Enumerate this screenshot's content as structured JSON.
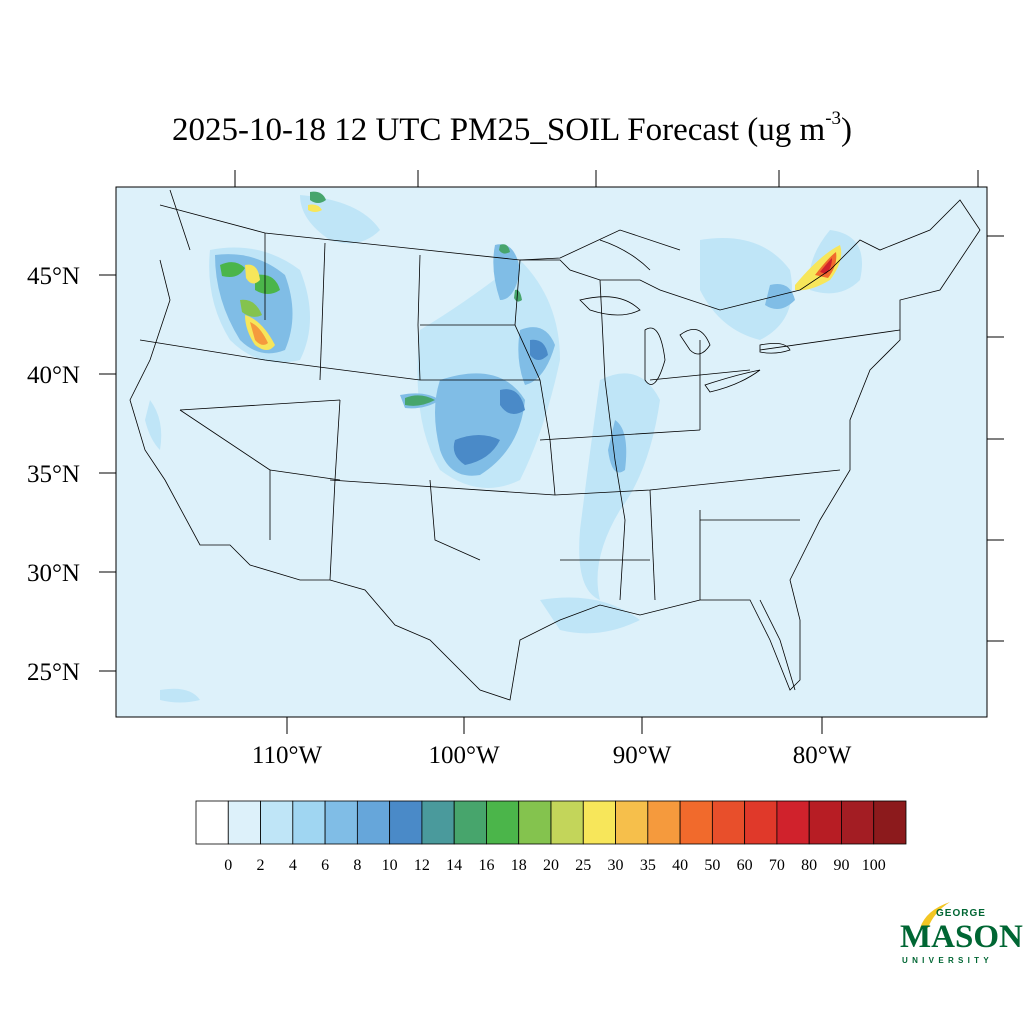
{
  "title": {
    "text": "2025-10-18 12 UTC PM25_SOIL Forecast (ug m",
    "exponent": "-3",
    "close": ")"
  },
  "map": {
    "type": "filled contour map",
    "region": "CONUS",
    "background_color": "#ddf1fa",
    "lat_labels": [
      "45°N",
      "40°N",
      "35°N",
      "30°N",
      "25°N"
    ],
    "lon_labels": [
      "110°W",
      "100°W",
      "90°W",
      "80°W"
    ]
  },
  "colorbar": {
    "labels": [
      "0",
      "2",
      "4",
      "6",
      "8",
      "10",
      "12",
      "14",
      "16",
      "18",
      "20",
      "25",
      "30",
      "35",
      "40",
      "50",
      "60",
      "70",
      "80",
      "90",
      "100"
    ],
    "colors": [
      "#ffffff",
      "#ddf1fa",
      "#bfe5f7",
      "#a0d6f2",
      "#80bde6",
      "#66a6da",
      "#4a8ac8",
      "#4a9a9c",
      "#47a56c",
      "#4bb54a",
      "#84c34e",
      "#c3d55a",
      "#f7e65a",
      "#f6bf4b",
      "#f59a3d",
      "#f16a2c",
      "#e84f2b",
      "#e0392a",
      "#d0222c",
      "#b71d24",
      "#a31d23",
      "#8c1a1c"
    ]
  },
  "logo": {
    "line1": "GEORGE",
    "line2": "MASON",
    "line3": "UNIVERSITY"
  }
}
